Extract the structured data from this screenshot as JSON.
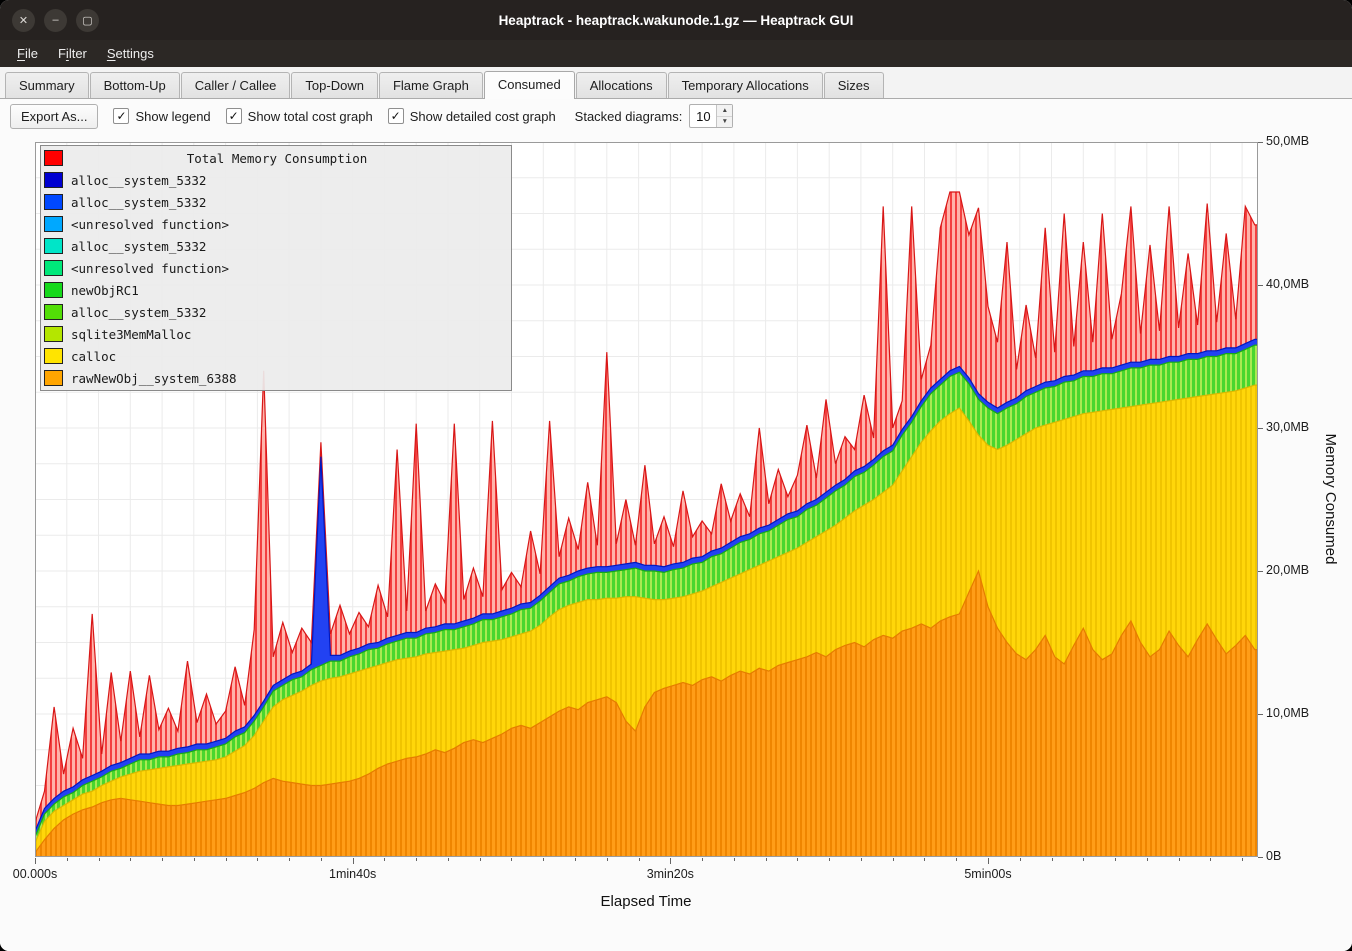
{
  "window": {
    "title": "Heaptrack - heaptrack.wakunode.1.gz — Heaptrack GUI"
  },
  "icons": {
    "close": "✕",
    "minimize": "–",
    "maximize": "▢",
    "check": "✓",
    "spin_up": "▲",
    "spin_down": "▼"
  },
  "menu": {
    "items": [
      {
        "label": "File",
        "accel_index": 0
      },
      {
        "label": "Filter",
        "accel_index": 1
      },
      {
        "label": "Settings",
        "accel_index": 0
      }
    ]
  },
  "tabs": [
    {
      "label": "Summary",
      "active": false
    },
    {
      "label": "Bottom-Up",
      "active": false
    },
    {
      "label": "Caller / Callee",
      "active": false
    },
    {
      "label": "Top-Down",
      "active": false
    },
    {
      "label": "Flame Graph",
      "active": false
    },
    {
      "label": "Consumed",
      "active": true
    },
    {
      "label": "Allocations",
      "active": false
    },
    {
      "label": "Temporary Allocations",
      "active": false
    },
    {
      "label": "Sizes",
      "active": false
    }
  ],
  "toolbar": {
    "export_button": "Export As...",
    "checkboxes": [
      {
        "label": "Show legend",
        "checked": true
      },
      {
        "label": "Show total cost graph",
        "checked": true
      },
      {
        "label": "Show detailed cost graph",
        "checked": true
      }
    ],
    "stacked_label": "Stacked diagrams:",
    "stacked_value": "10"
  },
  "legend": {
    "title": "Total Memory Consumption",
    "title_color": "#ff0000",
    "items": [
      {
        "label": "alloc__system_5332",
        "color": "#0000d0"
      },
      {
        "label": "alloc__system_5332",
        "color": "#0048ff"
      },
      {
        "label": "<unresolved function>",
        "color": "#00a8ff"
      },
      {
        "label": "alloc__system_5332",
        "color": "#00e5c8"
      },
      {
        "label": "<unresolved function>",
        "color": "#00e87a"
      },
      {
        "label": "newObjRC1",
        "color": "#16d91c"
      },
      {
        "label": "alloc__system_5332",
        "color": "#52de07"
      },
      {
        "label": "sqlite3MemMalloc",
        "color": "#b4e600"
      },
      {
        "label": "calloc",
        "color": "#ffe400"
      },
      {
        "label": "rawNewObj__system_6388",
        "color": "#ffa500"
      }
    ]
  },
  "chart_data": {
    "type": "area",
    "stacked": "cumulative-tops",
    "title": "Total Memory Consumption",
    "xlabel": "Elapsed Time",
    "ylabel": "Memory Consumed",
    "x_unit": "seconds",
    "y_unit": "MB",
    "dt": 3,
    "x_max": 385,
    "y_max": 50,
    "grid": {
      "x_step": 10,
      "y_step": 2.5
    },
    "x_ticks": [
      {
        "label": "00.000s",
        "t": 0
      },
      {
        "label": "1min40s",
        "t": 100
      },
      {
        "label": "3min20s",
        "t": 200
      },
      {
        "label": "5min00s",
        "t": 300
      }
    ],
    "y_ticks": [
      {
        "label": "0B",
        "v": 0
      },
      {
        "label": "10,0MB",
        "v": 10
      },
      {
        "label": "20,0MB",
        "v": 20
      },
      {
        "label": "30,0MB",
        "v": 30
      },
      {
        "label": "40,0MB",
        "v": 40
      },
      {
        "label": "50,0MB",
        "v": 50
      }
    ],
    "series": [
      {
        "name": "total memory consumption",
        "color_fill": "#ffb3aa",
        "color_stripe": "#f34040",
        "color_line": "#d81616",
        "values": [
          2.4,
          4.6,
          10.5,
          5.8,
          9.0,
          6.9,
          17.0,
          7.2,
          12.9,
          8.1,
          13.0,
          8.4,
          12.7,
          8.9,
          10.4,
          8.8,
          13.7,
          9.4,
          11.4,
          9.3,
          10.2,
          13.3,
          10.6,
          15.9,
          34.0,
          14.0,
          16.4,
          14.3,
          16.0,
          15.0,
          29.0,
          15.6,
          17.6,
          15.6,
          17.1,
          16.1,
          19.0,
          16.8,
          28.5,
          17.2,
          30.3,
          17.2,
          19.1,
          17.8,
          30.3,
          18.0,
          20.2,
          18.2,
          30.5,
          18.7,
          19.9,
          18.9,
          22.8,
          19.8,
          30.5,
          21.0,
          23.7,
          21.5,
          26.2,
          21.8,
          35.3,
          21.9,
          25.0,
          21.8,
          27.4,
          21.9,
          23.8,
          21.7,
          25.6,
          22.4,
          23.5,
          22.6,
          26.1,
          23.5,
          25.4,
          23.8,
          30.0,
          24.7,
          27.1,
          25.2,
          26.7,
          30.2,
          26.5,
          32.0,
          27.5,
          29.4,
          28.5,
          32.3,
          29.3,
          45.5,
          30.0,
          31.9,
          45.5,
          33.4,
          35.8,
          44.0,
          46.5,
          46.5,
          43.5,
          45.4,
          38.5,
          36.0,
          43.0,
          34.1,
          38.6,
          34.9,
          44.0,
          35.3,
          45.0,
          35.7,
          43.0,
          36.0,
          45.0,
          36.2,
          39.4,
          45.5,
          36.6,
          42.8,
          36.8,
          45.5,
          37.0,
          42.2,
          37.2,
          45.7,
          37.4,
          43.6,
          37.6,
          45.5,
          44.2
        ]
      },
      {
        "name": "alloc__system_5332",
        "color_fill": "#2242f2",
        "color_stripe": null,
        "color_line": "#0018c0",
        "values": [
          1.8,
          3.4,
          4.1,
          4.6,
          4.9,
          5.4,
          5.7,
          6.0,
          6.4,
          6.6,
          6.9,
          7.2,
          7.2,
          7.4,
          7.4,
          7.6,
          7.7,
          7.9,
          7.9,
          8.1,
          8.3,
          8.8,
          9.1,
          9.9,
          10.9,
          12.0,
          12.4,
          12.8,
          13.0,
          13.5,
          28.0,
          14.1,
          14.1,
          14.4,
          14.6,
          14.9,
          15.0,
          15.3,
          15.5,
          15.7,
          15.7,
          16.0,
          16.1,
          16.3,
          16.3,
          16.5,
          16.7,
          17.0,
          17.0,
          17.2,
          17.4,
          17.7,
          17.8,
          18.3,
          18.9,
          19.5,
          19.7,
          20.0,
          20.2,
          20.3,
          20.3,
          20.4,
          20.5,
          20.6,
          20.4,
          20.4,
          20.3,
          20.5,
          20.6,
          20.9,
          21.0,
          21.4,
          21.6,
          22.0,
          22.4,
          22.6,
          23.0,
          23.2,
          23.6,
          24.0,
          24.2,
          24.7,
          25.0,
          25.5,
          26.0,
          26.4,
          27.0,
          27.3,
          27.8,
          28.4,
          28.8,
          29.9,
          30.8,
          31.9,
          32.8,
          33.4,
          34.0,
          34.3,
          33.5,
          32.4,
          31.8,
          31.4,
          31.8,
          32.1,
          32.6,
          32.9,
          33.2,
          33.3,
          33.6,
          33.7,
          34.0,
          34.0,
          34.2,
          34.2,
          34.4,
          34.6,
          34.6,
          34.8,
          34.8,
          35.0,
          35.0,
          35.2,
          35.2,
          35.4,
          35.4,
          35.6,
          35.6,
          35.9,
          36.2
        ]
      },
      {
        "name": "green group (newObjRC1, sqlite3MemMalloc, unresolved)",
        "color_fill": "#49d62e",
        "color_stripe": "#a9ea51",
        "color_line": "#18a818",
        "values": [
          1.4,
          3.0,
          3.7,
          4.2,
          4.5,
          5.0,
          5.3,
          5.6,
          6.0,
          6.2,
          6.5,
          6.8,
          6.8,
          7.0,
          7.0,
          7.2,
          7.3,
          7.5,
          7.5,
          7.7,
          7.9,
          8.4,
          8.7,
          9.5,
          10.5,
          11.6,
          12.0,
          12.4,
          12.6,
          13.1,
          13.4,
          13.7,
          13.7,
          14.0,
          14.2,
          14.5,
          14.6,
          14.9,
          15.1,
          15.3,
          15.3,
          15.6,
          15.7,
          15.9,
          15.9,
          16.1,
          16.3,
          16.6,
          16.6,
          16.8,
          17.0,
          17.3,
          17.4,
          17.9,
          18.5,
          19.1,
          19.3,
          19.6,
          19.8,
          19.9,
          19.9,
          20.0,
          20.1,
          20.2,
          20.0,
          20.0,
          19.9,
          20.1,
          20.2,
          20.5,
          20.6,
          21.0,
          21.2,
          21.6,
          22.0,
          22.2,
          22.6,
          22.8,
          23.2,
          23.6,
          23.8,
          24.3,
          24.6,
          25.1,
          25.6,
          26.0,
          26.6,
          26.9,
          27.4,
          28.0,
          28.4,
          29.5,
          30.4,
          31.5,
          32.4,
          33.0,
          33.6,
          33.9,
          33.1,
          32.0,
          31.4,
          31.0,
          31.4,
          31.7,
          32.2,
          32.5,
          32.8,
          32.9,
          33.2,
          33.3,
          33.6,
          33.6,
          33.8,
          33.8,
          34.0,
          34.2,
          34.2,
          34.4,
          34.4,
          34.6,
          34.6,
          34.8,
          34.8,
          35.0,
          35.0,
          35.2,
          35.2,
          35.5,
          35.8
        ]
      },
      {
        "name": "calloc",
        "color_fill": "#ffd60a",
        "color_stripe": "#f0c400",
        "color_line": "#d9b800",
        "values": [
          1.0,
          2.5,
          3.2,
          3.6,
          4.0,
          4.4,
          4.6,
          5.0,
          5.3,
          5.6,
          5.8,
          6.0,
          6.1,
          6.2,
          6.3,
          6.4,
          6.5,
          6.6,
          6.7,
          6.8,
          7.0,
          7.4,
          7.8,
          8.5,
          9.5,
          10.5,
          11.0,
          11.3,
          11.6,
          12.0,
          12.3,
          12.5,
          12.6,
          12.8,
          13.0,
          13.2,
          13.4,
          13.6,
          13.8,
          13.9,
          14.0,
          14.2,
          14.3,
          14.4,
          14.5,
          14.6,
          14.8,
          15.0,
          15.1,
          15.2,
          15.4,
          15.6,
          15.8,
          16.2,
          16.8,
          17.3,
          17.6,
          17.8,
          18.0,
          18.0,
          18.1,
          18.1,
          18.2,
          18.2,
          18.1,
          18.0,
          18.0,
          18.1,
          18.2,
          18.4,
          18.6,
          18.9,
          19.2,
          19.5,
          19.8,
          20.1,
          20.4,
          20.7,
          21.0,
          21.3,
          21.6,
          22.0,
          22.4,
          22.8,
          23.2,
          23.7,
          24.2,
          24.6,
          25.0,
          25.5,
          26.0,
          27.0,
          28.0,
          29.0,
          29.8,
          30.5,
          31.0,
          31.4,
          30.5,
          29.5,
          28.8,
          28.5,
          28.8,
          29.2,
          29.6,
          30.0,
          30.2,
          30.4,
          30.6,
          30.8,
          31.0,
          31.1,
          31.2,
          31.3,
          31.4,
          31.5,
          31.6,
          31.7,
          31.8,
          31.9,
          32.0,
          32.1,
          32.2,
          32.3,
          32.4,
          32.5,
          32.6,
          32.8,
          33.0
        ]
      },
      {
        "name": "rawNewObj__system_6388",
        "color_fill": "#ff9d18",
        "color_stripe": "#ef8500",
        "color_line": "#e57d00",
        "values": [
          0.3,
          1.2,
          2.0,
          2.6,
          3.0,
          3.3,
          3.5,
          3.8,
          4.0,
          4.1,
          4.0,
          3.9,
          3.8,
          3.7,
          3.6,
          3.6,
          3.7,
          3.8,
          3.9,
          4.0,
          4.1,
          4.3,
          4.5,
          4.8,
          5.2,
          5.5,
          5.3,
          5.2,
          5.1,
          5.0,
          5.0,
          5.1,
          5.2,
          5.3,
          5.5,
          5.8,
          6.2,
          6.5,
          6.7,
          6.9,
          7.0,
          7.2,
          7.5,
          7.3,
          7.6,
          8.0,
          8.2,
          8.0,
          8.3,
          8.6,
          9.0,
          9.2,
          9.0,
          9.4,
          9.8,
          10.2,
          10.5,
          10.3,
          10.8,
          11.0,
          11.2,
          10.8,
          9.5,
          8.8,
          10.5,
          11.5,
          11.8,
          12.0,
          12.2,
          12.0,
          12.4,
          12.6,
          12.3,
          12.7,
          13.0,
          12.8,
          13.2,
          13.0,
          13.4,
          13.6,
          13.8,
          14.0,
          14.3,
          14.0,
          14.5,
          14.8,
          15.0,
          14.7,
          15.2,
          15.5,
          15.3,
          15.8,
          16.0,
          16.3,
          16.0,
          16.5,
          16.8,
          17.0,
          18.5,
          20.0,
          17.5,
          16.0,
          15.0,
          14.2,
          13.8,
          14.5,
          15.5,
          14.0,
          13.5,
          14.8,
          16.0,
          14.5,
          13.8,
          14.2,
          15.5,
          16.5,
          15.0,
          14.0,
          14.5,
          15.8,
          14.8,
          14.0,
          15.2,
          16.3,
          15.2,
          14.2,
          14.8,
          15.5,
          14.5
        ]
      }
    ]
  }
}
